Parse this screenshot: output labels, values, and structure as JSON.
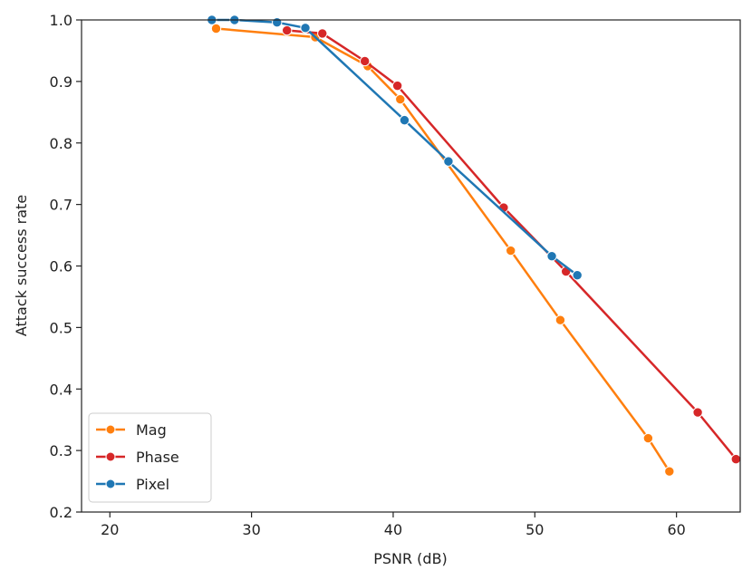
{
  "chart_data": {
    "type": "line",
    "title": "",
    "xlabel": "PSNR (dB)",
    "ylabel": "Attack success rate",
    "xlim": [
      18,
      64.5
    ],
    "ylim": [
      0.2,
      1.0
    ],
    "xticks": [
      20,
      30,
      40,
      50,
      60
    ],
    "yticks": [
      0.2,
      0.3,
      0.4,
      0.5,
      0.6,
      0.7,
      0.8,
      0.9,
      1.0
    ],
    "xtick_labels": [
      "20",
      "30",
      "40",
      "50",
      "60"
    ],
    "ytick_labels": [
      "0.2",
      "0.3",
      "0.4",
      "0.5",
      "0.6",
      "0.7",
      "0.8",
      "0.9",
      "1.0"
    ],
    "grid": false,
    "legend_position": "lower-left",
    "series": [
      {
        "name": "Mag",
        "color": "#ff7f0e",
        "points": [
          [
            27.5,
            0.986
          ],
          [
            34.5,
            0.972
          ],
          [
            38.2,
            0.925
          ],
          [
            40.5,
            0.871
          ],
          [
            48.3,
            0.625
          ],
          [
            51.8,
            0.512
          ],
          [
            58.0,
            0.32
          ],
          [
            59.5,
            0.266
          ]
        ]
      },
      {
        "name": "Phase",
        "color": "#d62728",
        "points": [
          [
            32.5,
            0.983
          ],
          [
            35.0,
            0.978
          ],
          [
            38.0,
            0.933
          ],
          [
            40.3,
            0.893
          ],
          [
            47.8,
            0.695
          ],
          [
            52.2,
            0.591
          ],
          [
            61.5,
            0.362
          ],
          [
            64.2,
            0.286
          ]
        ]
      },
      {
        "name": "Pixel",
        "color": "#1f77b4",
        "points": [
          [
            27.2,
            1.0
          ],
          [
            28.8,
            1.0
          ],
          [
            31.8,
            0.996
          ],
          [
            33.8,
            0.987
          ],
          [
            40.8,
            0.837
          ],
          [
            43.9,
            0.77
          ],
          [
            51.2,
            0.616
          ],
          [
            53.0,
            0.585
          ]
        ]
      }
    ]
  }
}
